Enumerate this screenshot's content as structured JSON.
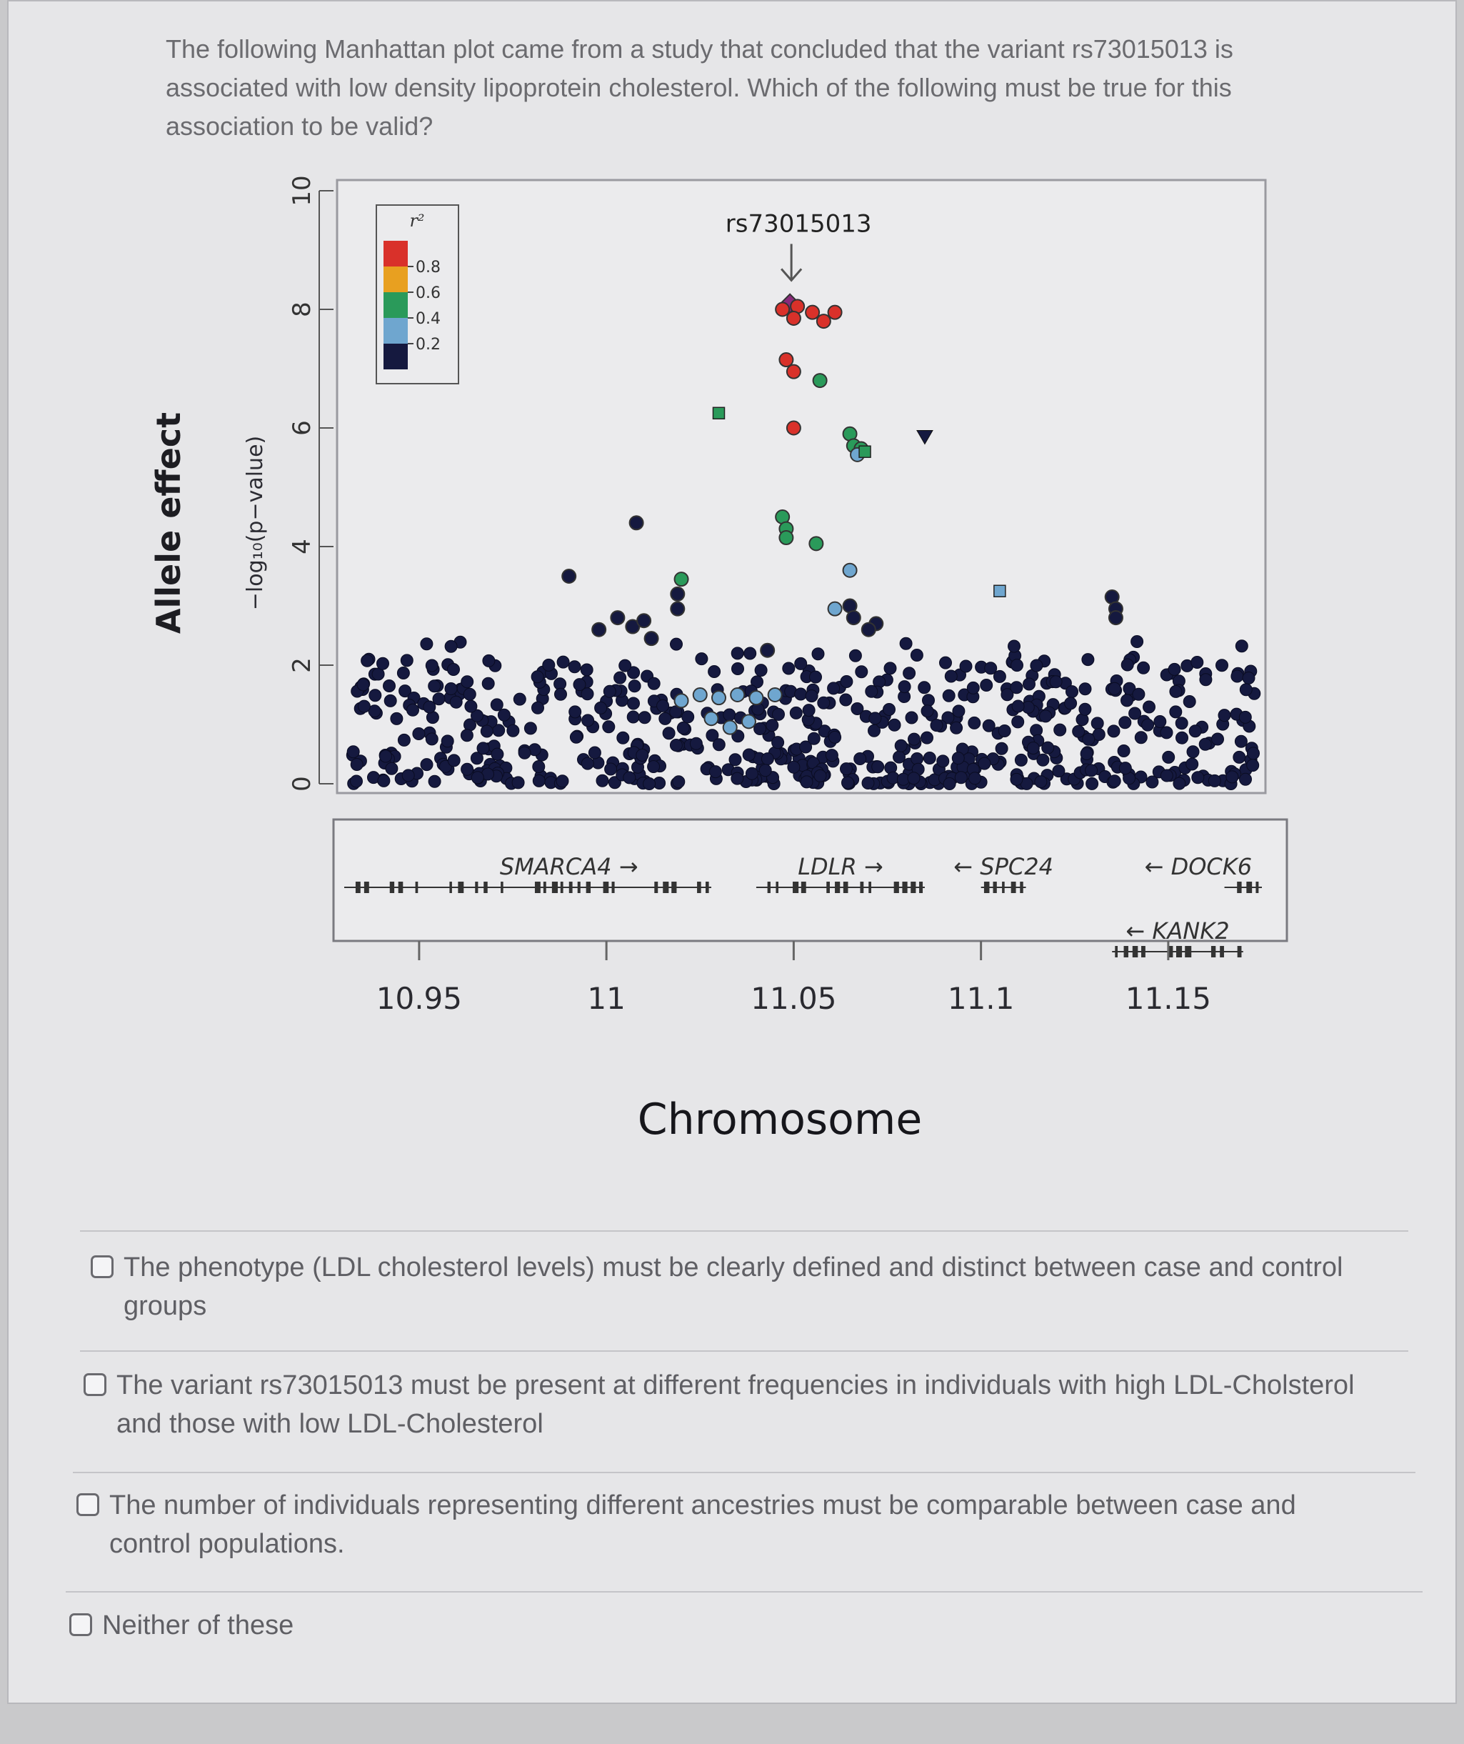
{
  "question": {
    "text": "The following Manhattan plot came from a study that concluded that the variant rs73015013 is associated with low density lipoprotein cholesterol. Which of the following must be true for this association to be valid?"
  },
  "options": [
    {
      "label": "The phenotype (LDL cholesterol levels) must be clearly defined and distinct between case and control groups"
    },
    {
      "label": "The variant rs73015013 must be present at different frequencies in individuals with high LDL-Cholsterol and those with low LDL-Cholesterol"
    },
    {
      "label": "The number of individuals representing different ancestries must be comparable between case and control populations."
    },
    {
      "label": "Neither of these"
    }
  ],
  "chart_data": {
    "type": "scatter",
    "xlabel": "Chromosome",
    "ylabel": "Allele effect",
    "ylabel_inner": "−log₁₀(p−value)",
    "xlim": [
      10.93,
      11.175
    ],
    "ylim": [
      0,
      10
    ],
    "xticks": [
      {
        "value": 10.95,
        "label": "10.95"
      },
      {
        "value": 11,
        "label": "11"
      },
      {
        "value": 11.05,
        "label": "11.05"
      },
      {
        "value": 11.1,
        "label": "11.1"
      },
      {
        "value": 11.15,
        "label": "11.15"
      }
    ],
    "yticks": [
      0,
      2,
      4,
      6,
      8,
      10
    ],
    "annotation": {
      "label": "rs73015013",
      "x": 11.049,
      "y": 8.2
    },
    "legend": {
      "title": "r²",
      "placement": "top-left",
      "ticks": [
        "0.8",
        "0.6",
        "0.4",
        "0.2"
      ],
      "colors": [
        "#d9312a",
        "#e8a020",
        "#2a9a5a",
        "#6fa6cf",
        "#15193f"
      ]
    },
    "colors": {
      "0.8": "#d9312a",
      "0.6": "#e8a020",
      "0.4": "#2a9a5a",
      "0.2": "#6fa6cf",
      "0.0": "#15193f"
    },
    "highlight_points": [
      {
        "x": 11.049,
        "y": 8.1,
        "r2": "1.0",
        "shape": "diamond"
      },
      {
        "x": 11.047,
        "y": 8.0,
        "r2": "0.8"
      },
      {
        "x": 11.051,
        "y": 8.05,
        "r2": "0.8"
      },
      {
        "x": 11.05,
        "y": 7.85,
        "r2": "0.8"
      },
      {
        "x": 11.055,
        "y": 7.95,
        "r2": "0.8"
      },
      {
        "x": 11.058,
        "y": 7.8,
        "r2": "0.8"
      },
      {
        "x": 11.061,
        "y": 7.95,
        "r2": "0.8"
      },
      {
        "x": 11.048,
        "y": 7.15,
        "r2": "0.8"
      },
      {
        "x": 11.05,
        "y": 6.95,
        "r2": "0.8"
      },
      {
        "x": 11.05,
        "y": 6.0,
        "r2": "0.8"
      },
      {
        "x": 11.057,
        "y": 6.8,
        "r2": "0.4"
      },
      {
        "x": 11.03,
        "y": 6.25,
        "r2": "0.4",
        "shape": "square"
      },
      {
        "x": 11.065,
        "y": 5.9,
        "r2": "0.4"
      },
      {
        "x": 11.066,
        "y": 5.7,
        "r2": "0.4"
      },
      {
        "x": 11.068,
        "y": 5.65,
        "r2": "0.4"
      },
      {
        "x": 11.067,
        "y": 5.55,
        "r2": "0.2"
      },
      {
        "x": 11.069,
        "y": 5.6,
        "r2": "0.4",
        "shape": "square"
      },
      {
        "x": 11.085,
        "y": 5.85,
        "r2": "0.0",
        "shape": "triangle"
      },
      {
        "x": 11.047,
        "y": 4.5,
        "r2": "0.4"
      },
      {
        "x": 11.048,
        "y": 4.3,
        "r2": "0.4"
      },
      {
        "x": 11.048,
        "y": 4.15,
        "r2": "0.4"
      },
      {
        "x": 11.056,
        "y": 4.05,
        "r2": "0.4"
      },
      {
        "x": 11.065,
        "y": 3.6,
        "r2": "0.2"
      },
      {
        "x": 11.02,
        "y": 3.45,
        "r2": "0.4"
      },
      {
        "x": 11.008,
        "y": 4.4,
        "r2": "0.0"
      },
      {
        "x": 10.99,
        "y": 3.5,
        "r2": "0.0"
      },
      {
        "x": 11.019,
        "y": 3.2,
        "r2": "0.0"
      },
      {
        "x": 11.019,
        "y": 2.95,
        "r2": "0.0"
      },
      {
        "x": 11.061,
        "y": 2.95,
        "r2": "0.2"
      },
      {
        "x": 11.065,
        "y": 3.0,
        "r2": "0.0"
      },
      {
        "x": 11.066,
        "y": 2.8,
        "r2": "0.0"
      },
      {
        "x": 11.072,
        "y": 2.7,
        "r2": "0.0"
      },
      {
        "x": 11.07,
        "y": 2.6,
        "r2": "0.0"
      },
      {
        "x": 11.043,
        "y": 2.25,
        "r2": "0.0"
      },
      {
        "x": 11.105,
        "y": 3.25,
        "r2": "0.2",
        "shape": "square"
      },
      {
        "x": 11.135,
        "y": 3.15,
        "r2": "0.0"
      },
      {
        "x": 11.136,
        "y": 2.95,
        "r2": "0.0"
      },
      {
        "x": 11.136,
        "y": 2.8,
        "r2": "0.0"
      },
      {
        "x": 11.003,
        "y": 2.8,
        "r2": "0.0"
      },
      {
        "x": 11.007,
        "y": 2.65,
        "r2": "0.0"
      },
      {
        "x": 11.01,
        "y": 2.75,
        "r2": "0.0"
      },
      {
        "x": 10.998,
        "y": 2.6,
        "r2": "0.0"
      },
      {
        "x": 11.012,
        "y": 2.45,
        "r2": "0.0"
      },
      {
        "x": 11.02,
        "y": 1.4,
        "r2": "0.2"
      },
      {
        "x": 11.025,
        "y": 1.5,
        "r2": "0.2"
      },
      {
        "x": 11.03,
        "y": 1.45,
        "r2": "0.2"
      },
      {
        "x": 11.035,
        "y": 1.5,
        "r2": "0.2"
      },
      {
        "x": 11.04,
        "y": 1.45,
        "r2": "0.2"
      },
      {
        "x": 11.045,
        "y": 1.5,
        "r2": "0.2"
      },
      {
        "x": 11.028,
        "y": 1.1,
        "r2": "0.2"
      },
      {
        "x": 11.033,
        "y": 0.95,
        "r2": "0.2"
      },
      {
        "x": 11.038,
        "y": 1.05,
        "r2": "0.2"
      }
    ],
    "background_points": "≈600 points with r² < 0.2 spread over 10.93–11.17 Mb at −log10(p) ≈ 0–2.2",
    "genes": [
      {
        "name": "SMARCA4",
        "direction": "→",
        "label": "SMARCA4 →",
        "start": 10.93,
        "end": 11.028,
        "row": 0
      },
      {
        "name": "LDLR",
        "direction": "→",
        "label": "LDLR →",
        "start": 11.04,
        "end": 11.085,
        "row": 0
      },
      {
        "name": "SPC24",
        "direction": "←",
        "label": "← SPC24",
        "start": 11.1,
        "end": 11.112,
        "row": 0
      },
      {
        "name": "DOCK6",
        "direction": "←",
        "label": "← DOCK6",
        "start": 11.165,
        "end": 11.175,
        "row": 0
      },
      {
        "name": "KANK2",
        "direction": "←",
        "label": "← KANK2",
        "start": 11.135,
        "end": 11.17,
        "row": 1
      }
    ]
  }
}
